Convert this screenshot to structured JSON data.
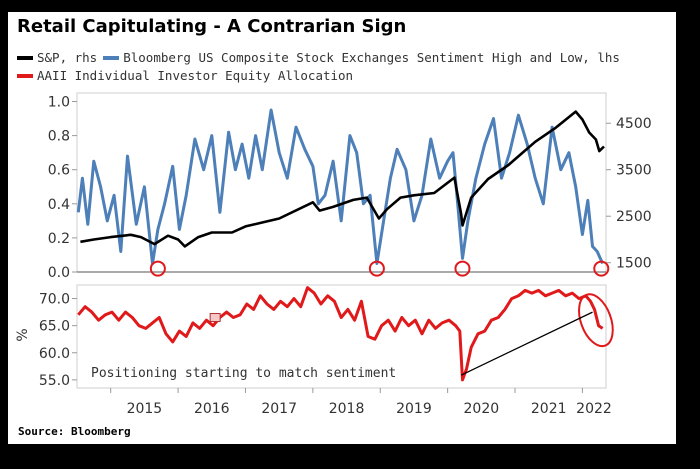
{
  "title": "Retail Capitulating - A Contrarian Sign",
  "legend": [
    {
      "label": "S&P, rhs",
      "color": "#000000"
    },
    {
      "label": "Bloomberg US Composite Stock Exchanges Sentiment High and Low, lhs",
      "color": "#4d7fb8"
    },
    {
      "label": "AAII Individual Investor Equity Allocation",
      "color": "#e0191b"
    }
  ],
  "source": "Source: Bloomberg",
  "annotation": "Positioning starting to match sentiment",
  "chart_data": [
    {
      "type": "line",
      "panel": "top",
      "x_range": [
        2014.5,
        2022.35
      ],
      "left_axis": {
        "ticks": [
          0.0,
          0.2,
          0.4,
          0.6,
          0.8,
          1.0
        ],
        "labels": [
          "0.0",
          "0.2",
          "0.4",
          "0.6",
          "0.8",
          "1.0"
        ],
        "range": [
          0,
          1.05
        ]
      },
      "right_axis": {
        "ticks": [
          1500,
          2500,
          3500,
          4500
        ],
        "labels": [
          "1500",
          "2500",
          "3500",
          "4500"
        ],
        "range": [
          1300,
          5150
        ]
      },
      "series": [
        {
          "name": "S&P, rhs",
          "axis": "right",
          "color": "#000000",
          "x": [
            2014.55,
            2014.75,
            2015.0,
            2015.3,
            2015.45,
            2015.65,
            2015.85,
            2016.0,
            2016.1,
            2016.3,
            2016.5,
            2016.8,
            2017.0,
            2017.5,
            2018.0,
            2018.1,
            2018.3,
            2018.6,
            2018.8,
            2018.98,
            2019.1,
            2019.3,
            2019.5,
            2019.8,
            2020.1,
            2020.2,
            2020.22,
            2020.35,
            2020.6,
            2020.9,
            2021.1,
            2021.3,
            2021.6,
            2021.9,
            2022.0,
            2022.1,
            2022.2,
            2022.25,
            2022.32
          ],
          "y": [
            1950,
            2000,
            2050,
            2100,
            2050,
            1900,
            2080,
            2000,
            1850,
            2050,
            2150,
            2150,
            2280,
            2450,
            2800,
            2620,
            2700,
            2850,
            2900,
            2450,
            2650,
            2900,
            2950,
            3000,
            3330,
            2550,
            2300,
            2900,
            3300,
            3600,
            3850,
            4100,
            4400,
            4750,
            4580,
            4300,
            4150,
            3900,
            4000
          ]
        },
        {
          "name": "Bloomberg US Composite Stock Exchanges Sentiment High and Low, lhs",
          "axis": "left",
          "color": "#4d7fb8",
          "x": [
            2014.52,
            2014.58,
            2014.66,
            2014.75,
            2014.85,
            2014.95,
            2015.05,
            2015.15,
            2015.25,
            2015.38,
            2015.5,
            2015.62,
            2015.7,
            2015.8,
            2015.92,
            2016.02,
            2016.12,
            2016.25,
            2016.38,
            2016.5,
            2016.62,
            2016.75,
            2016.85,
            2016.95,
            2017.05,
            2017.15,
            2017.25,
            2017.38,
            2017.5,
            2017.62,
            2017.75,
            2017.88,
            2018.0,
            2018.08,
            2018.18,
            2018.3,
            2018.42,
            2018.55,
            2018.65,
            2018.75,
            2018.85,
            2018.95,
            2019.05,
            2019.15,
            2019.25,
            2019.38,
            2019.5,
            2019.62,
            2019.75,
            2019.88,
            2020.0,
            2020.08,
            2020.15,
            2020.22,
            2020.3,
            2020.42,
            2020.55,
            2020.68,
            2020.8,
            2020.92,
            2021.05,
            2021.18,
            2021.3,
            2021.42,
            2021.55,
            2021.68,
            2021.8,
            2021.9,
            2022.0,
            2022.08,
            2022.15,
            2022.22,
            2022.3
          ],
          "y": [
            0.35,
            0.55,
            0.28,
            0.65,
            0.5,
            0.3,
            0.45,
            0.12,
            0.68,
            0.28,
            0.5,
            0.05,
            0.25,
            0.4,
            0.62,
            0.25,
            0.45,
            0.78,
            0.6,
            0.8,
            0.35,
            0.82,
            0.6,
            0.75,
            0.55,
            0.8,
            0.6,
            0.95,
            0.7,
            0.55,
            0.85,
            0.72,
            0.62,
            0.4,
            0.45,
            0.65,
            0.3,
            0.8,
            0.7,
            0.4,
            0.45,
            0.05,
            0.3,
            0.55,
            0.72,
            0.6,
            0.3,
            0.45,
            0.78,
            0.55,
            0.65,
            0.7,
            0.4,
            0.08,
            0.3,
            0.55,
            0.75,
            0.9,
            0.55,
            0.7,
            0.92,
            0.75,
            0.55,
            0.4,
            0.85,
            0.6,
            0.7,
            0.5,
            0.22,
            0.42,
            0.15,
            0.12,
            0.05
          ]
        }
      ],
      "circles_at_x": [
        2015.7,
        2018.95,
        2020.22,
        2022.28
      ]
    },
    {
      "type": "line",
      "panel": "bottom",
      "ylabel": "%",
      "x_range": [
        2014.5,
        2022.35
      ],
      "left_axis": {
        "ticks": [
          55.0,
          60.0,
          65.0,
          70.0
        ],
        "labels": [
          "55.0",
          "60.0",
          "65.0",
          "70.0"
        ],
        "range": [
          53.5,
          72.5
        ]
      },
      "x_ticks": [
        2015,
        2016,
        2017,
        2018,
        2019,
        2020,
        2021,
        2022
      ],
      "x_tick_labels": [
        "2015",
        "2016",
        "2017",
        "2018",
        "2019",
        "2020",
        "2021",
        "2022"
      ],
      "series": [
        {
          "name": "AAII Individual Investor Equity Allocation",
          "axis": "left",
          "color": "#e0191b",
          "x": [
            2014.52,
            2014.62,
            2014.72,
            2014.82,
            2014.92,
            2015.02,
            2015.12,
            2015.22,
            2015.32,
            2015.42,
            2015.52,
            2015.62,
            2015.72,
            2015.82,
            2015.92,
            2016.02,
            2016.12,
            2016.22,
            2016.32,
            2016.42,
            2016.52,
            2016.62,
            2016.72,
            2016.82,
            2016.92,
            2017.02,
            2017.12,
            2017.22,
            2017.32,
            2017.42,
            2017.52,
            2017.62,
            2017.72,
            2017.82,
            2017.92,
            2018.02,
            2018.12,
            2018.22,
            2018.32,
            2018.42,
            2018.52,
            2018.62,
            2018.72,
            2018.82,
            2018.92,
            2019.02,
            2019.12,
            2019.22,
            2019.32,
            2019.42,
            2019.52,
            2019.62,
            2019.72,
            2019.82,
            2019.92,
            2020.02,
            2020.12,
            2020.18,
            2020.22,
            2020.28,
            2020.35,
            2020.45,
            2020.55,
            2020.65,
            2020.75,
            2020.85,
            2020.95,
            2021.05,
            2021.15,
            2021.25,
            2021.35,
            2021.45,
            2021.55,
            2021.65,
            2021.75,
            2021.85,
            2021.95,
            2022.05,
            2022.12,
            2022.18,
            2022.24,
            2022.3
          ],
          "y": [
            67.0,
            68.5,
            67.5,
            66.0,
            67.0,
            67.5,
            66.0,
            67.5,
            66.5,
            65.0,
            64.5,
            65.5,
            66.5,
            63.5,
            62.0,
            64.0,
            63.0,
            65.5,
            64.5,
            66.0,
            65.0,
            66.5,
            67.5,
            66.5,
            67.0,
            69.0,
            68.0,
            70.5,
            69.0,
            68.0,
            69.5,
            68.5,
            70.0,
            68.5,
            72.0,
            71.0,
            69.0,
            70.5,
            69.5,
            66.5,
            68.0,
            66.0,
            69.5,
            63.0,
            62.5,
            65.0,
            66.0,
            64.0,
            66.5,
            65.0,
            66.0,
            63.5,
            66.0,
            64.5,
            65.5,
            66.0,
            65.0,
            64.0,
            55.0,
            57.0,
            61.0,
            63.5,
            64.0,
            66.0,
            66.5,
            68.0,
            70.0,
            70.5,
            71.5,
            71.0,
            71.5,
            70.5,
            71.0,
            71.5,
            70.5,
            71.0,
            70.0,
            70.5,
            69.5,
            68.0,
            65.0,
            64.5
          ]
        }
      ],
      "highlight_square": {
        "x": 2016.55,
        "y": 66.5
      },
      "ellipse_at_x": 2022.2,
      "arrow_to": {
        "x": 2022.15,
        "y": 67.5
      },
      "annotation_x": 2020.2,
      "annotation_y": 55.5
    }
  ]
}
